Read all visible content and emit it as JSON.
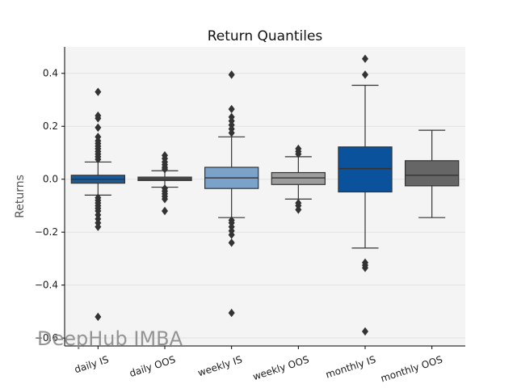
{
  "chart_data": {
    "type": "box",
    "title": "Return Quantiles",
    "xlabel": "",
    "ylabel": "Returns",
    "ylim": [
      -0.63,
      0.5
    ],
    "yticks": [
      -0.6,
      -0.4,
      -0.2,
      0.0,
      0.2,
      0.4
    ],
    "ytick_labels": [
      "−0.6",
      "−0.4",
      "−0.2",
      "0.0",
      "0.2",
      "0.4"
    ],
    "grid": "horizontal",
    "categories": [
      "daily IS",
      "daily OOS",
      "weekly IS",
      "weekly OOS",
      "monthly IS",
      "monthly OOS"
    ],
    "boxes": [
      {
        "name": "daily IS",
        "color": "#1b5b98",
        "q1": -0.015,
        "median": 0.0,
        "q3": 0.015,
        "whisker_low": -0.06,
        "whisker_high": 0.065,
        "outliers": [
          0.33,
          0.24,
          0.23,
          0.195,
          0.16,
          0.145,
          0.135,
          0.125,
          0.115,
          0.105,
          0.095,
          0.085,
          0.075,
          -0.07,
          -0.08,
          -0.09,
          -0.1,
          -0.11,
          -0.12,
          -0.135,
          -0.15,
          -0.165,
          -0.18,
          -0.52
        ]
      },
      {
        "name": "daily OOS",
        "color": "#5b5b5b",
        "q1": -0.005,
        "median": 0.001,
        "q3": 0.008,
        "whisker_low": -0.03,
        "whisker_high": 0.032,
        "outliers": [
          0.09,
          0.078,
          0.065,
          0.055,
          0.045,
          0.038,
          -0.035,
          -0.045,
          -0.055,
          -0.065,
          -0.075,
          -0.12
        ]
      },
      {
        "name": "weekly IS",
        "color": "#7ba3c9",
        "q1": -0.035,
        "median": 0.005,
        "q3": 0.045,
        "whisker_low": -0.145,
        "whisker_high": 0.16,
        "outliers": [
          0.395,
          0.265,
          0.235,
          0.22,
          0.205,
          0.19,
          0.175,
          -0.155,
          -0.165,
          -0.18,
          -0.195,
          -0.21,
          -0.24,
          -0.505
        ]
      },
      {
        "name": "weekly OOS",
        "color": "#9d9d9d",
        "q1": -0.02,
        "median": 0.005,
        "q3": 0.025,
        "whisker_low": -0.075,
        "whisker_high": 0.085,
        "outliers": [
          0.115,
          0.105,
          0.095,
          -0.09,
          -0.1,
          -0.115
        ]
      },
      {
        "name": "monthly IS",
        "color": "#0a529b",
        "q1": -0.048,
        "median": 0.04,
        "q3": 0.122,
        "whisker_low": -0.26,
        "whisker_high": 0.355,
        "outliers": [
          0.455,
          0.395,
          -0.315,
          -0.325,
          -0.335,
          -0.575
        ]
      },
      {
        "name": "monthly OOS",
        "color": "#666666",
        "q1": -0.025,
        "median": 0.015,
        "q3": 0.07,
        "whisker_low": -0.145,
        "whisker_high": 0.185,
        "outliers": []
      }
    ]
  },
  "watermark": "DeepHub IMBA",
  "colors": {
    "plot_bg": "#f4f4f4",
    "grid": "#e2e2e2",
    "axis": "#000000",
    "line": "#333333"
  }
}
